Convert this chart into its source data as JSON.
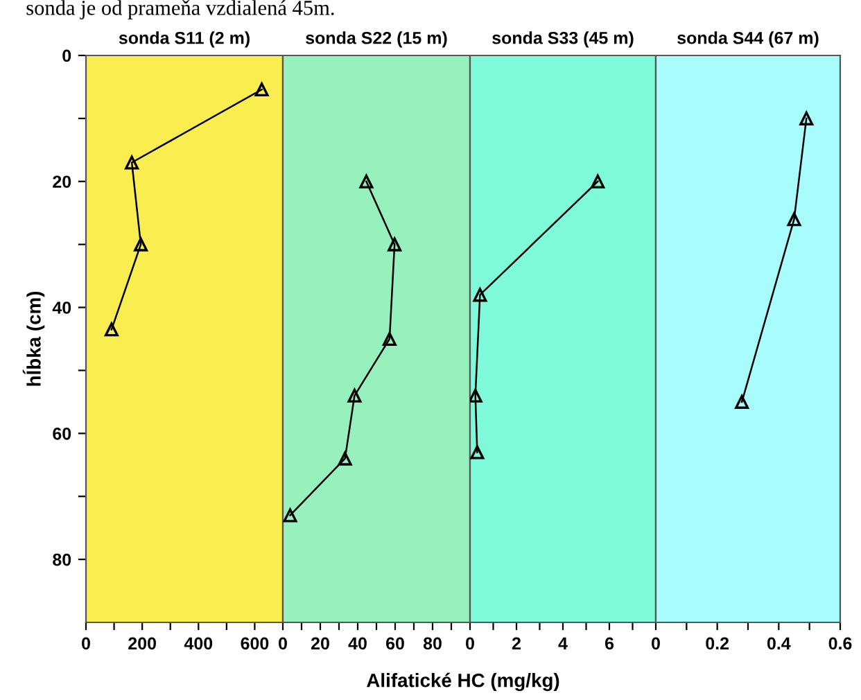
{
  "chart_data": [
    {
      "type": "line",
      "title": "sonda S11 (2 m)",
      "ylabel": "hĺbka (cm)",
      "xlabel": "Alifatické HC (mg/kg)",
      "annotations": [
        "sonda je od prameňa vzdialená 45m."
      ],
      "series": [
        {
          "color": "#000000",
          "x": [
            625,
            163,
            195,
            91
          ],
          "values": [
            5.4,
            17,
            30,
            43.5
          ]
        }
      ],
      "xlim": [
        0,
        700
      ],
      "xticks": [
        0,
        {
          "value": 100,
          "label": null
        },
        200,
        {
          "value": 300,
          "label": null
        },
        400,
        {
          "value": 500,
          "label": null
        },
        600
      ],
      "ylim": [
        90,
        0
      ],
      "yticks": [
        0,
        {
          "value": 10,
          "label": null
        },
        20,
        {
          "value": 30,
          "label": null
        },
        40,
        {
          "value": 50,
          "label": null
        },
        60,
        {
          "value": 70,
          "label": null
        },
        80
      ],
      "marker": "triangle",
      "line_style": "solid",
      "grid": false,
      "legend": false
    },
    {
      "type": "line",
      "title": "sonda S22 (15 m)",
      "tick_labels": "x",
      "series": [
        {
          "color": "#000000",
          "x": [
            44.6,
            59.7,
            57,
            38.3,
            33.2,
            3.9
          ],
          "values": [
            20,
            30,
            45,
            54,
            64,
            73
          ]
        }
      ],
      "xlim": [
        0,
        100
      ],
      "xticks": [
        0,
        {
          "value": 10,
          "label": null
        },
        20,
        {
          "value": 30,
          "label": null
        },
        40,
        {
          "value": 50,
          "label": null
        },
        60,
        {
          "value": 70,
          "label": null
        },
        80,
        {
          "value": 90,
          "label": null
        }
      ],
      "ylim": [
        90,
        0
      ],
      "marker": "triangle",
      "line_style": "solid",
      "grid": false,
      "legend": false
    },
    {
      "type": "line",
      "title": "sonda S33 (45 m)",
      "tick_labels": "x",
      "series": [
        {
          "color": "#000000",
          "x": [
            5.5,
            0.43,
            0.23,
            0.31
          ],
          "values": [
            20,
            38,
            54,
            63
          ]
        }
      ],
      "xlim": [
        0,
        8
      ],
      "xticks": [
        0,
        {
          "value": 1,
          "label": null
        },
        2,
        {
          "value": 3,
          "label": null
        },
        4,
        {
          "value": 5,
          "label": null
        },
        6,
        {
          "value": 7,
          "label": null
        }
      ],
      "ylim": [
        90,
        0
      ],
      "marker": "triangle",
      "line_style": "solid",
      "grid": false,
      "legend": false
    },
    {
      "type": "line",
      "title": "sonda S44 (67 m)",
      "tick_labels": "x",
      "series": [
        {
          "color": "#000000",
          "x": [
            0.49,
            0.45,
            0.28
          ],
          "values": [
            10,
            26,
            55
          ]
        }
      ],
      "xlim": [
        0,
        0.6
      ],
      "xticks": [
        0,
        {
          "value": 0.1,
          "label": null
        },
        0.2,
        {
          "value": 0.3,
          "label": null
        },
        0.4,
        {
          "value": 0.5,
          "label": null
        },
        0.6
      ],
      "ylim": [
        90,
        0
      ],
      "marker": "triangle",
      "line_style": "solid",
      "grid": false,
      "legend": false
    }
  ]
}
